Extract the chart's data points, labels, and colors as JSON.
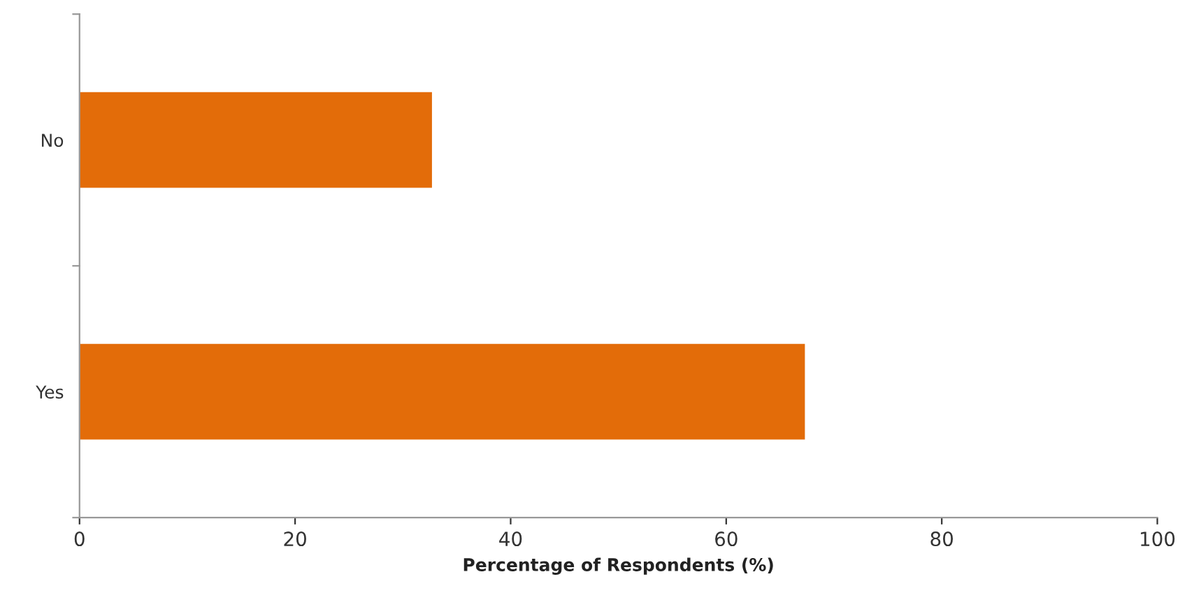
{
  "chart_data": {
    "type": "bar",
    "orientation": "horizontal",
    "categories": [
      "No",
      "Yes"
    ],
    "values": [
      32.7,
      67.3
    ],
    "color": "#e36c09",
    "xlabel": "Percentage of Respondents (%)",
    "xlim": [
      0,
      100
    ],
    "xticks": [
      0,
      20,
      40,
      60,
      80,
      100
    ],
    "grid": false,
    "legend": false
  }
}
